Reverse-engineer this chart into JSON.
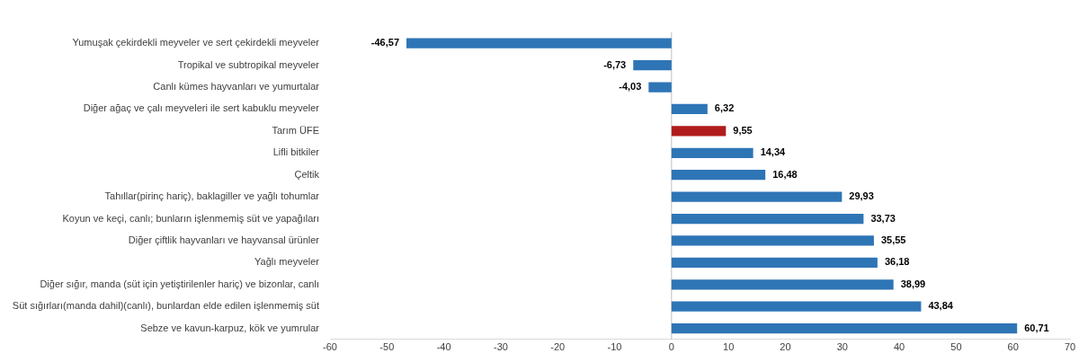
{
  "chart_data": {
    "type": "bar",
    "orientation": "horizontal",
    "categories": [
      "Yumuşak çekirdekli meyveler ve sert çekirdekli meyveler",
      "Tropikal ve subtropikal meyveler",
      "Canlı kümes hayvanları ve yumurtalar",
      "Diğer ağaç ve çalı meyveleri ile sert kabuklu meyveler",
      "Tarım ÜFE",
      "Lifli bitkiler",
      "Çeltik",
      "Tahıllar(pirinç hariç), baklagiller ve yağlı tohumlar",
      "Koyun ve keçi, canlı; bunların işlenmemiş süt ve yapağıları",
      "Diğer çiftlik hayvanları ve hayvansal ürünler",
      "Yağlı meyveler",
      "Diğer sığır, manda (süt için yetiştirilenler hariç) ve bizonlar, canlı",
      "Süt sığırları(manda dahil)(canlı), bunlardan elde edilen işlenmemiş süt",
      "Sebze ve kavun-karpuz, kök ve yumrular"
    ],
    "values": [
      -46.57,
      -6.73,
      -4.03,
      6.32,
      9.55,
      14.34,
      16.48,
      29.93,
      33.73,
      35.55,
      36.18,
      38.99,
      43.84,
      60.71
    ],
    "value_labels": [
      "-46,57",
      "-6,73",
      "-4,03",
      "6,32",
      "9,55",
      "14,34",
      "16,48",
      "29,93",
      "33,73",
      "35,55",
      "36,18",
      "38,99",
      "43,84",
      "60,71"
    ],
    "colors": [
      "#2e75b6",
      "#2e75b6",
      "#2e75b6",
      "#2e75b6",
      "#b01c1c",
      "#2e75b6",
      "#2e75b6",
      "#2e75b6",
      "#2e75b6",
      "#2e75b6",
      "#2e75b6",
      "#2e75b6",
      "#2e75b6",
      "#2e75b6"
    ],
    "xlim": [
      -60,
      70
    ],
    "xticks": [
      -60,
      -50,
      -40,
      -30,
      -20,
      -10,
      0,
      10,
      20,
      30,
      40,
      50,
      60,
      70
    ],
    "ref_lines": [
      {
        "axis": "x",
        "value": 0,
        "color": "#bfbfbf"
      }
    ],
    "grid": false,
    "legend": false
  }
}
